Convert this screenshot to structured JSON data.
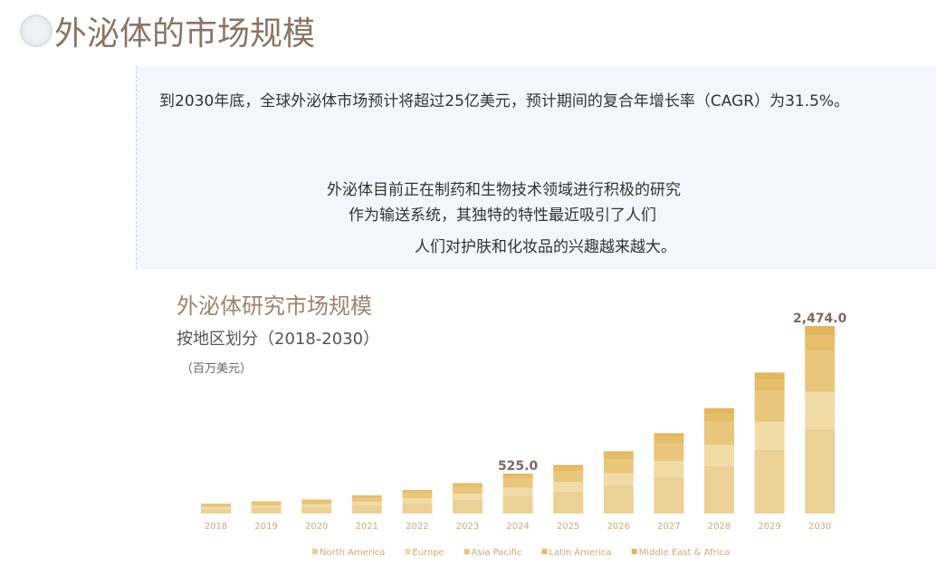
{
  "header": {
    "title": "外泌体的市场规模"
  },
  "intro": {
    "line1": "到2030年底，全球外泌体市场预计将超过25亿美元，预计期间的复合年增长率（CAGR）为31.5%。",
    "c1": "外泌体目前正在制药和生物技术领域进行积极的研究",
    "c2": "作为输送系统，其独特的特性最近吸引了人们",
    "c3": "人们对护肤和化妆品的兴趣越来越大。"
  },
  "chart_data": {
    "type": "bar",
    "stacked": true,
    "title": "外泌体研究市场规模",
    "subtitle": "按地区划分（2018-2030）",
    "unit": "（百万美元）",
    "categories": [
      "2018",
      "2019",
      "2020",
      "2021",
      "2022",
      "2023",
      "2024",
      "2025",
      "2026",
      "2027",
      "2028",
      "2029",
      "2030"
    ],
    "series": [
      {
        "name": "North America",
        "color": "#ecd196",
        "values": [
          58.5,
          72,
          83.3,
          108,
          139.5,
          180,
          236.3,
          288,
          369,
          477,
          625.5,
          837,
          1113.3
        ]
      },
      {
        "name": "Europe",
        "color": "#f1dba6",
        "values": [
          26,
          32,
          37,
          48,
          62,
          80,
          105,
          128,
          164,
          212,
          278,
          372,
          494.8
        ]
      },
      {
        "name": "Asia Pacific",
        "color": "#e9c67c",
        "values": [
          28.6,
          35.2,
          40.7,
          52.8,
          68.2,
          88,
          115.5,
          140.8,
          180.4,
          233.2,
          305.8,
          409.2,
          544.3
        ]
      },
      {
        "name": "Latin America",
        "color": "#e6bd68",
        "values": [
          10.4,
          12.8,
          14.8,
          19.2,
          24.8,
          32,
          42,
          51.2,
          65.6,
          84.8,
          111.2,
          148.8,
          197.9
        ]
      },
      {
        "name": "Middle East & Africa",
        "color": "#e2b65b",
        "values": [
          6.5,
          8,
          9.25,
          12,
          15.5,
          20,
          26.25,
          32,
          41,
          53,
          69.5,
          93,
          123.7
        ]
      }
    ],
    "data_labels": [
      {
        "category": "2024",
        "text": "525.0"
      },
      {
        "category": "2030",
        "text": "2,474.0"
      }
    ],
    "ylim": [
      0,
      2474
    ],
    "legend": "bottom",
    "grid": false
  }
}
